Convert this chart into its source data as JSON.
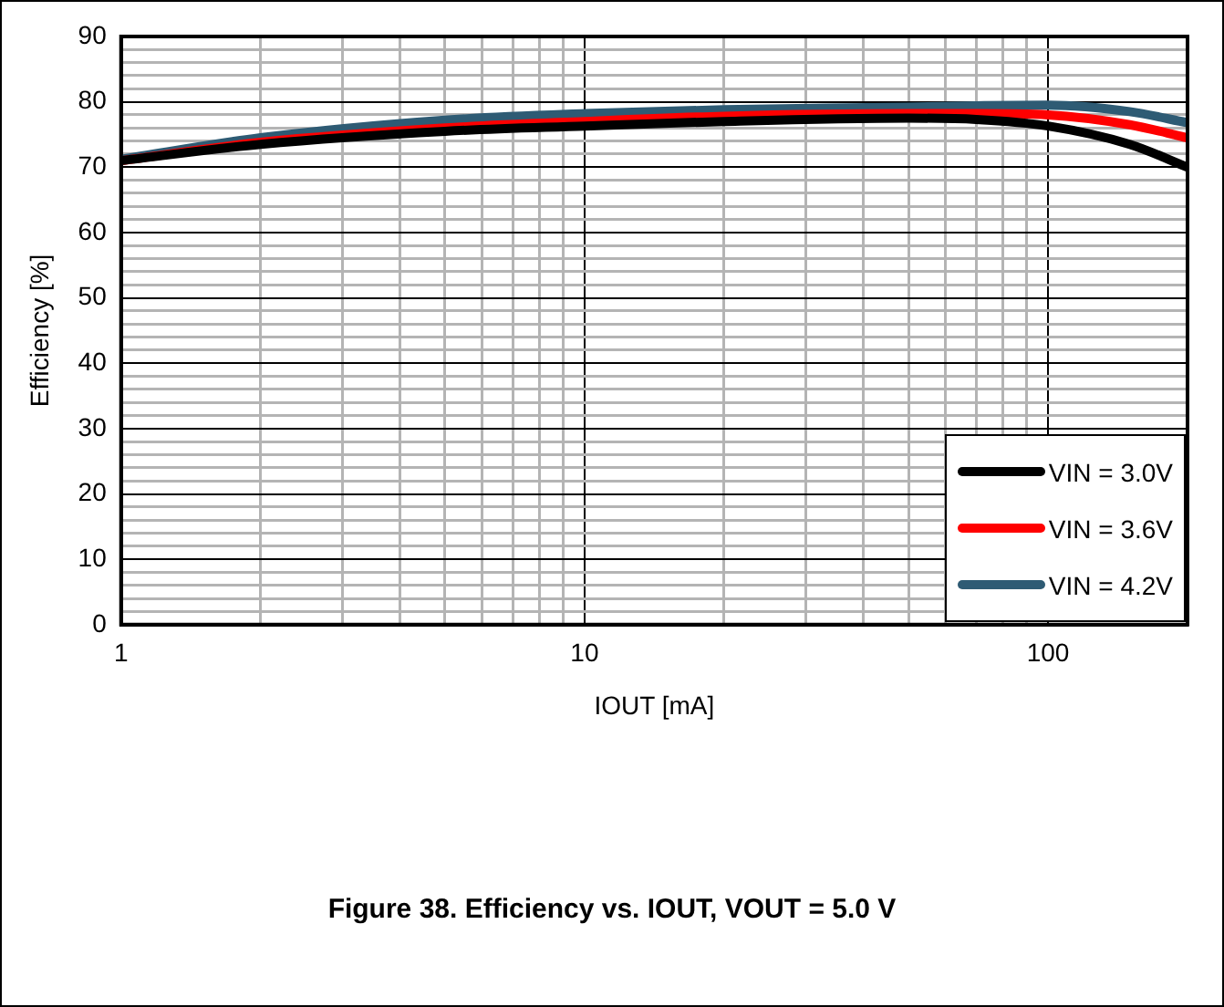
{
  "chart_data": {
    "type": "line",
    "title": "Figure 38. Efficiency vs. IOUT, VOUT = 5.0 V",
    "xlabel": "IOUT [mA]",
    "ylabel": "Efficiency [%]",
    "log": "x",
    "xlim": [
      1,
      200
    ],
    "ylim": [
      0,
      90
    ],
    "xticks": [
      1,
      {
        "value": 2,
        "label": null
      },
      {
        "value": 3,
        "label": null
      },
      {
        "value": 4,
        "label": null
      },
      {
        "value": 5,
        "label": null
      },
      {
        "value": 6,
        "label": null
      },
      {
        "value": 7,
        "label": null
      },
      {
        "value": 8,
        "label": null
      },
      {
        "value": 9,
        "label": null
      },
      10,
      {
        "value": 20,
        "label": null
      },
      {
        "value": 30,
        "label": null
      },
      {
        "value": 40,
        "label": null
      },
      {
        "value": 50,
        "label": null
      },
      {
        "value": 60,
        "label": null
      },
      {
        "value": 70,
        "label": null
      },
      {
        "value": 80,
        "label": null
      },
      {
        "value": 90,
        "label": null
      },
      100
    ],
    "yticks": [
      0,
      {
        "value": 2,
        "label": null
      },
      {
        "value": 4,
        "label": null
      },
      {
        "value": 6,
        "label": null
      },
      {
        "value": 8,
        "label": null
      },
      10,
      {
        "value": 12,
        "label": null
      },
      {
        "value": 14,
        "label": null
      },
      {
        "value": 16,
        "label": null
      },
      {
        "value": 18,
        "label": null
      },
      20,
      {
        "value": 22,
        "label": null
      },
      {
        "value": 24,
        "label": null
      },
      {
        "value": 26,
        "label": null
      },
      {
        "value": 28,
        "label": null
      },
      30,
      {
        "value": 32,
        "label": null
      },
      {
        "value": 34,
        "label": null
      },
      {
        "value": 36,
        "label": null
      },
      {
        "value": 38,
        "label": null
      },
      40,
      {
        "value": 42,
        "label": null
      },
      {
        "value": 44,
        "label": null
      },
      {
        "value": 46,
        "label": null
      },
      {
        "value": 48,
        "label": null
      },
      50,
      {
        "value": 52,
        "label": null
      },
      {
        "value": 54,
        "label": null
      },
      {
        "value": 56,
        "label": null
      },
      {
        "value": 58,
        "label": null
      },
      60,
      {
        "value": 62,
        "label": null
      },
      {
        "value": 64,
        "label": null
      },
      {
        "value": 66,
        "label": null
      },
      {
        "value": 68,
        "label": null
      },
      70,
      {
        "value": 72,
        "label": null
      },
      {
        "value": 74,
        "label": null
      },
      {
        "value": 76,
        "label": null
      },
      {
        "value": 78,
        "label": null
      },
      80,
      {
        "value": 82,
        "label": null
      },
      {
        "value": 84,
        "label": null
      },
      {
        "value": 86,
        "label": null
      },
      {
        "value": 88,
        "label": null
      },
      90
    ],
    "x": [
      1,
      2,
      5,
      10,
      20,
      50,
      70,
      100,
      150,
      200
    ],
    "series": [
      {
        "name": "VIN = 3.0V",
        "color": "#000000",
        "values": [
          71,
          73.5,
          75.5,
          76.3,
          77,
          77.5,
          77.3,
          76.3,
          73.5,
          70
        ]
      },
      {
        "name": "VIN = 3.6V",
        "color": "#ff0000",
        "values": [
          71,
          73.8,
          76,
          77,
          77.8,
          78.2,
          78.2,
          78,
          76.5,
          74.5
        ]
      },
      {
        "name": "VIN = 4.2V",
        "color": "#2e5b74",
        "values": [
          71.2,
          74.5,
          77.2,
          78.2,
          78.8,
          79.2,
          79.4,
          79.5,
          78.5,
          76.8
        ]
      }
    ],
    "legend": "bottom right",
    "grid": true,
    "marker": "none",
    "line_style": "solid"
  }
}
